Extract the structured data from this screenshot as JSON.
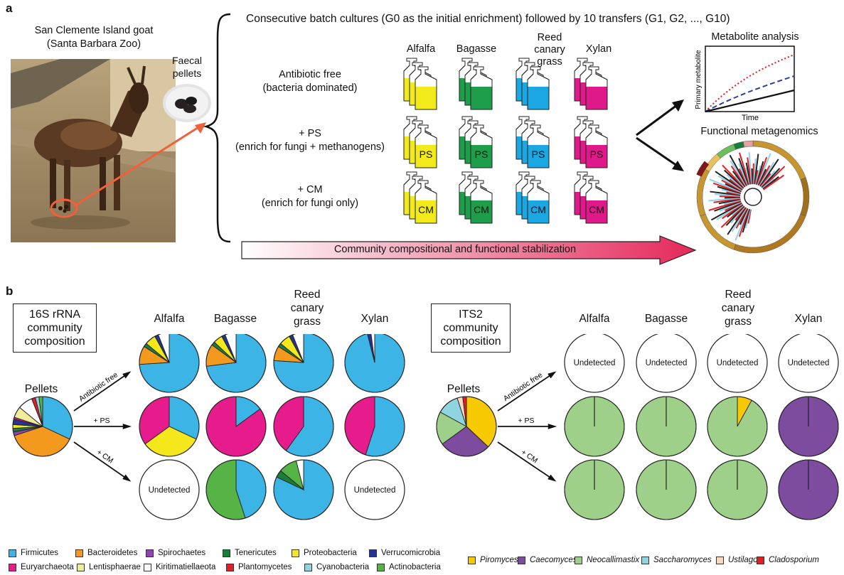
{
  "panel_a": {
    "letter": "a",
    "header": "Consecutive batch cultures (G0 as the initial enrichment) followed by 10 transfers (G1, G2, ..., G10)",
    "goat_title_1": "San Clemente Island goat",
    "goat_title_2": "(Santa Barbara Zoo)",
    "pellets_label_1": "Faecal",
    "pellets_label_2": "pellets",
    "substrates": [
      "Alfalfa",
      "Bagasse",
      "Reed canary grass",
      "Xylan"
    ],
    "substrate_colors": [
      "#f2ea1a",
      "#1e9e4a",
      "#1aa7e2",
      "#e0198a"
    ],
    "conditions": [
      {
        "line1": "Antibiotic free",
        "line2": "(bacteria dominated)",
        "bottle_label": ""
      },
      {
        "line1": "+ PS",
        "line2": "(enrich for fungi + methanogens)",
        "bottle_label": "PS"
      },
      {
        "line1": "+ CM",
        "line2": "(enrich for fungi only)",
        "bottle_label": "CM"
      }
    ],
    "metabolite_title": "Metabolite analysis",
    "metabolite_ylabel": "Primary metabolite",
    "metabolite_xlabel": "Time",
    "metagenomics_title": "Functional metagenomics",
    "stabilization_arrow": "Community compositional and functional stabilization"
  },
  "panel_b": {
    "letter": "b",
    "left_box": "16S rRNA community composition",
    "right_box": "ITS2 community composition",
    "pellets": "Pellets",
    "substrates": [
      "Alfalfa",
      "Bagasse",
      "Reed canary grass",
      "Xylan"
    ],
    "arrow_labels": [
      "Antibiotic free",
      "+ PS",
      "+ CM"
    ],
    "undetected": "Undetected"
  },
  "chart_data": [
    {
      "type": "pie",
      "title": "16S rRNA community composition",
      "legend": [
        {
          "name": "Firmicutes",
          "color": "#3db4e6"
        },
        {
          "name": "Bacteroidetes",
          "color": "#f39a1e"
        },
        {
          "name": "Spirochaetes",
          "color": "#8e44ad"
        },
        {
          "name": "Tenericutes",
          "color": "#1b7d3a"
        },
        {
          "name": "Proteobacteria",
          "color": "#f4e81c"
        },
        {
          "name": "Verrucomicrobia",
          "color": "#26348f"
        },
        {
          "name": "Euryarchaeota",
          "color": "#e61c8c"
        },
        {
          "name": "Lentisphaerae",
          "color": "#f1ec9a"
        },
        {
          "name": "Kiritimatiellaeota",
          "color": "#ffffff"
        },
        {
          "name": "Plantomycetes",
          "color": "#e41e25"
        },
        {
          "name": "Cyanobacteria",
          "color": "#8fd3df"
        },
        {
          "name": "Actinobacteria",
          "color": "#56b447"
        }
      ],
      "pies": {
        "Pellets": {
          "Firmicutes": 32,
          "Bacteroidetes": 38,
          "Spirochaetes": 2,
          "Tenericutes": 2,
          "Proteobacteria": 2,
          "Verrucomicrobia": 3,
          "Euryarchaeota": 1,
          "Lentisphaerae": 6,
          "Kiritimatiellaeota": 8,
          "Plantomycetes": 2,
          "Cyanobacteria": 2,
          "Actinobacteria": 2
        },
        "Antibiotic free / Alfalfa": {
          "Firmicutes": 74,
          "Bacteroidetes": 10,
          "Tenericutes": 2,
          "Proteobacteria": 6,
          "Verrucomicrobia": 2,
          "Kiritimatiellaeota": 6
        },
        "Antibiotic free / Bagasse": {
          "Firmicutes": 73,
          "Bacteroidetes": 12,
          "Tenericutes": 2,
          "Proteobacteria": 5,
          "Verrucomicrobia": 2,
          "Kiritimatiellaeota": 6
        },
        "Antibiotic free / Reed canary grass": {
          "Firmicutes": 76,
          "Bacteroidetes": 8,
          "Tenericutes": 2,
          "Proteobacteria": 6,
          "Verrucomicrobia": 2,
          "Kiritimatiellaeota": 6
        },
        "Antibiotic free / Xylan": {
          "Firmicutes": 96,
          "Verrucomicrobia": 2,
          "Kiritimatiellaeota": 2
        },
        "+ PS / Alfalfa": {
          "Firmicutes": 32,
          "Proteobacteria": 33,
          "Euryarchaeota": 35
        },
        "+ PS / Bagasse": {
          "Firmicutes": 15,
          "Euryarchaeota": 85
        },
        "+ PS / Reed canary grass": {
          "Firmicutes": 60,
          "Euryarchaeota": 40
        },
        "+ PS / Xylan": {
          "Firmicutes": 55,
          "Euryarchaeota": 45
        },
        "+ CM / Alfalfa": "Undetected",
        "+ CM / Bagasse": {
          "Firmicutes": 45,
          "Actinobacteria": 55
        },
        "+ CM / Reed canary grass": {
          "Firmicutes": 82,
          "Tenericutes": 4,
          "Actinobacteria": 10,
          "Kiritimatiellaeota": 4
        },
        "+ CM / Xylan": "Undetected"
      }
    },
    {
      "type": "pie",
      "title": "ITS2 community composition",
      "legend": [
        {
          "name": "Piromyces",
          "color": "#f7c900"
        },
        {
          "name": "Caecomyces",
          "color": "#7d4c9e"
        },
        {
          "name": "Neocallimastix",
          "color": "#9fd08a"
        },
        {
          "name": "Saccharomyces",
          "color": "#8ed5e0"
        },
        {
          "name": "Ustilago",
          "color": "#f7d8c0"
        },
        {
          "name": "Cladosporium",
          "color": "#e41e25"
        }
      ],
      "pies": {
        "Pellets": {
          "Piromyces": 37,
          "Caecomyces": 28,
          "Neocallimastix": 18,
          "Saccharomyces": 12,
          "Ustilago": 3,
          "Cladosporium": 2
        },
        "Antibiotic free / Alfalfa": "Undetected",
        "Antibiotic free / Bagasse": "Undetected",
        "Antibiotic free / Reed canary grass": "Undetected",
        "Antibiotic free / Xylan": "Undetected",
        "+ PS / Alfalfa": {
          "Neocallimastix": 100
        },
        "+ PS / Bagasse": {
          "Neocallimastix": 100
        },
        "+ PS / Reed canary grass": {
          "Piromyces": 8,
          "Neocallimastix": 92
        },
        "+ PS / Xylan": {
          "Caecomyces": 100
        },
        "+ CM / Alfalfa": {
          "Neocallimastix": 100
        },
        "+ CM / Bagasse": {
          "Neocallimastix": 100
        },
        "+ CM / Reed canary grass": {
          "Neocallimastix": 100
        },
        "+ CM / Xylan": {
          "Caecomyces": 100
        }
      }
    }
  ]
}
